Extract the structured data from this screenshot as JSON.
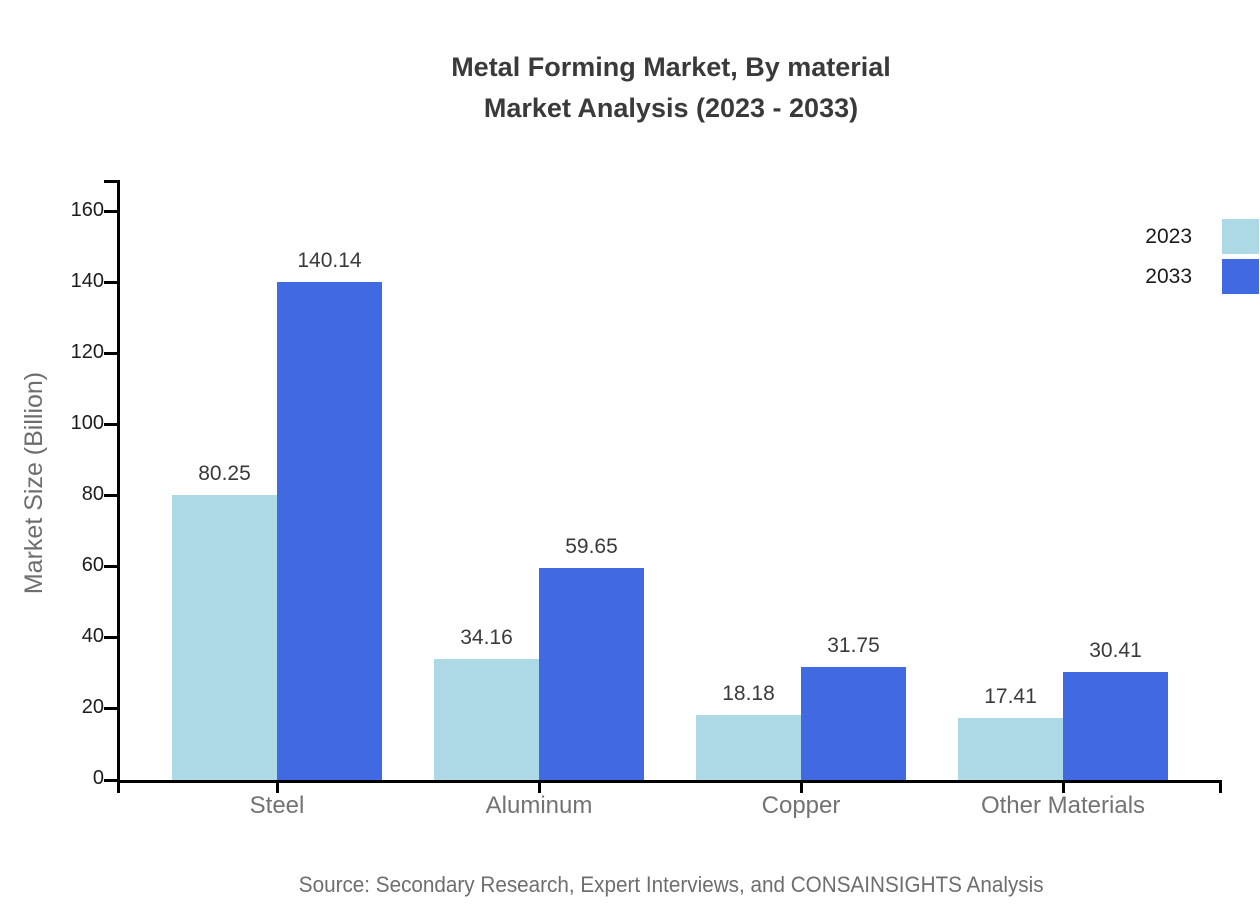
{
  "title": {
    "line1": "Metal Forming Market, By material",
    "line2": "Market Analysis (2023 - 2033)"
  },
  "source": "Source: Secondary Research, Expert Interviews, and CONSAINSIGHTS Analysis",
  "chart_data": {
    "type": "bar",
    "title": "Metal Forming Market, By material Market Analysis (2023 - 2033)",
    "categories": [
      "Steel",
      "Aluminum",
      "Copper",
      "Other Materials"
    ],
    "series": [
      {
        "name": "2023",
        "color": "#ADD8E6",
        "values": [
          80.25,
          34.16,
          18.18,
          17.41
        ]
      },
      {
        "name": "2033",
        "color": "#4169E1",
        "values": [
          140.14,
          59.65,
          31.75,
          30.41
        ]
      }
    ],
    "xlabel": "",
    "ylabel": "Market Size (Billion)",
    "ylim": [
      0,
      169
    ],
    "yticks": [
      0,
      20,
      40,
      60,
      80,
      100,
      120,
      140,
      160
    ],
    "grid": false,
    "legend_position": "top-right",
    "value_labels": true,
    "value_label_decimals": 2
  },
  "colors": {
    "axis": "#000000",
    "title_text": "#3a3a3a",
    "tick_text": "#1c1c1c",
    "category_text": "#737373",
    "muted_text": "#6e6e6e",
    "value_text": "#3a3a3a"
  }
}
